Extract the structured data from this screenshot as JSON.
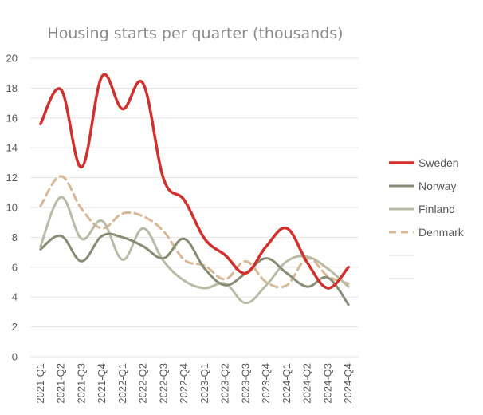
{
  "chart_data": {
    "type": "line",
    "title": "Housing starts per quarter (thousands)",
    "xlabel": "",
    "ylabel": "",
    "ylim": [
      0,
      20
    ],
    "yticks": [
      0,
      2,
      4,
      6,
      8,
      10,
      12,
      14,
      16,
      18,
      20
    ],
    "grid": true,
    "legend_position": "right",
    "x": [
      "2021-Q1",
      "2021-Q2",
      "2021-Q3",
      "2021-Q4",
      "2022-Q1",
      "2022-Q2",
      "2022-Q3",
      "2022-Q4",
      "2023-Q1",
      "2023-Q2",
      "2023-Q3",
      "2023-Q4",
      "2024-Q1",
      "2024-Q2",
      "2024-Q3",
      "2024-Q4"
    ],
    "series": [
      {
        "name": "Sweden",
        "color": "#d0312d",
        "dash": "solid",
        "width": 3.5,
        "values": [
          15.6,
          17.9,
          12.7,
          18.8,
          16.6,
          18.3,
          11.9,
          10.5,
          7.9,
          6.8,
          5.6,
          7.4,
          8.6,
          6.3,
          4.6,
          6.0
        ]
      },
      {
        "name": "Norway",
        "color": "#878c74",
        "dash": "solid",
        "width": 3,
        "values": [
          7.2,
          8.1,
          6.4,
          8.1,
          8.0,
          7.4,
          6.6,
          7.9,
          5.9,
          4.8,
          5.6,
          6.6,
          5.6,
          4.7,
          5.3,
          3.5
        ]
      },
      {
        "name": "Finland",
        "color": "#b8bca6",
        "dash": "solid",
        "width": 3,
        "values": [
          7.4,
          10.7,
          7.9,
          9.1,
          6.5,
          8.6,
          6.4,
          5.1,
          4.6,
          4.9,
          3.6,
          4.8,
          6.4,
          6.7,
          5.9,
          4.7
        ]
      },
      {
        "name": "Denmark",
        "color": "#d8b896",
        "dash": "dashed",
        "width": 3,
        "values": [
          10.1,
          12.1,
          9.9,
          8.6,
          9.6,
          9.4,
          8.4,
          6.5,
          6.1,
          5.2,
          6.4,
          5.0,
          4.8,
          6.6,
          5.4,
          4.9
        ]
      }
    ],
    "legend_extra_entries": 2
  }
}
